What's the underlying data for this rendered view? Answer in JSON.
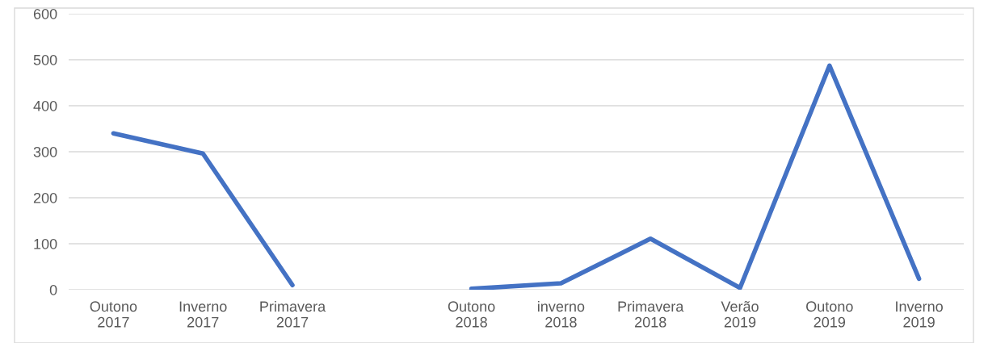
{
  "chart_data": {
    "type": "line",
    "categories": [
      "Outono\n2017",
      "Inverno\n2017",
      "Primavera\n2017",
      null,
      "Outono\n2018",
      "inverno\n2018",
      "Primavera\n2018",
      "Verão\n2019",
      "Outono\n2019",
      "Inverno\n2019"
    ],
    "series": [
      {
        "color": "#4472c4",
        "values": [
          340,
          296,
          10,
          null,
          2,
          14,
          111,
          4,
          487,
          24
        ]
      }
    ],
    "ylim": [
      0,
      600
    ],
    "yticks": [
      0,
      100,
      200,
      300,
      400,
      500,
      600
    ],
    "grid": "y",
    "legend": false,
    "marker": "none",
    "line_style": "solid"
  }
}
